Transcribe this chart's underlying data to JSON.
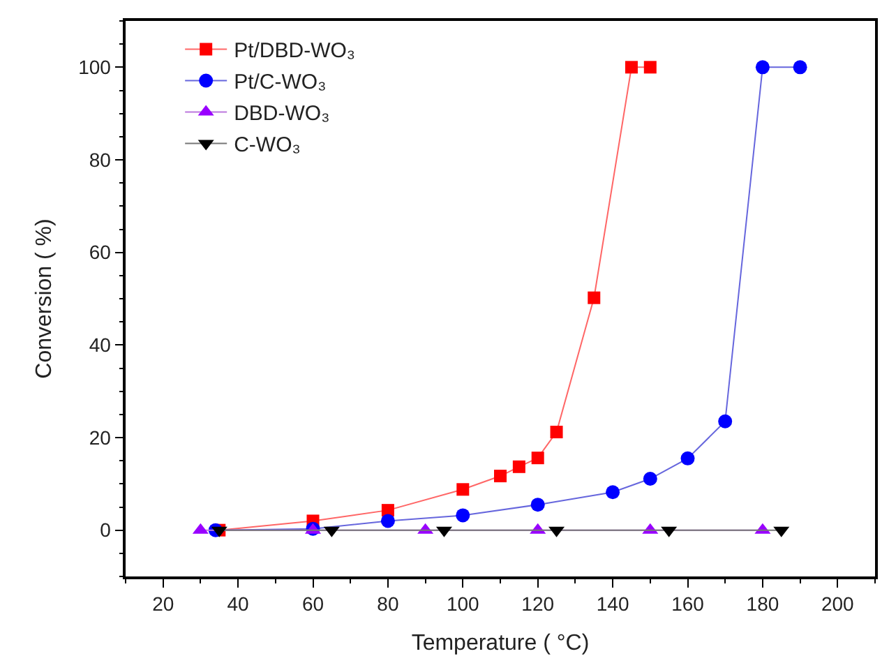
{
  "chart_data": {
    "type": "line",
    "xlabel": "Temperature ( °C)",
    "ylabel": "Conversion ( %)",
    "xlim": [
      10,
      210
    ],
    "ylim": [
      -10,
      110
    ],
    "xticks": [
      20,
      40,
      60,
      80,
      100,
      120,
      140,
      160,
      180,
      200
    ],
    "yticks": [
      0,
      20,
      40,
      60,
      80,
      100
    ],
    "legend": "top left",
    "line_style": "solid",
    "series": [
      {
        "name": "Pt/DBD-WO₃",
        "color": "#ff0000",
        "marker": "square",
        "x": [
          35,
          60,
          80,
          100,
          110,
          115,
          120,
          125,
          135,
          145,
          150
        ],
        "values": [
          0,
          2,
          4.3,
          8.8,
          11.7,
          13.7,
          15.6,
          21.2,
          50.2,
          100,
          100
        ]
      },
      {
        "name": "Pt/C-WO₃",
        "color": "#0000ff",
        "marker": "circle",
        "x": [
          34,
          60,
          80,
          100,
          120,
          140,
          150,
          160,
          170,
          180,
          190
        ],
        "values": [
          0,
          0.3,
          2,
          3.2,
          5.5,
          8.2,
          11.1,
          15.5,
          23.5,
          100,
          100
        ]
      },
      {
        "name": "DBD-WO₃",
        "color": "#9900ff",
        "marker": "triangle",
        "x": [
          30,
          60,
          90,
          120,
          150,
          180
        ],
        "values": [
          0,
          0,
          0,
          0,
          0,
          0
        ]
      },
      {
        "name": "C-WO₃",
        "color": "#000000",
        "marker": "triangle-down",
        "x": [
          35,
          65,
          95,
          125,
          155,
          185
        ],
        "values": [
          0,
          0,
          0,
          0,
          0,
          0
        ]
      }
    ]
  }
}
